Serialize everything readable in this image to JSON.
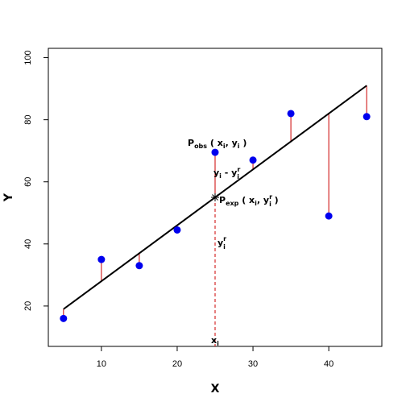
{
  "chart_data": {
    "type": "scatter",
    "xlabel": "X",
    "ylabel": "Y",
    "xlim": [
      3,
      47
    ],
    "ylim": [
      7,
      103
    ],
    "xticks": [
      10,
      20,
      30,
      40
    ],
    "yticks": [
      20,
      40,
      60,
      80,
      100
    ],
    "points": [
      {
        "x": 5,
        "y": 16
      },
      {
        "x": 10,
        "y": 35
      },
      {
        "x": 15,
        "y": 33
      },
      {
        "x": 20,
        "y": 44.5
      },
      {
        "x": 25,
        "y": 69.5
      },
      {
        "x": 30,
        "y": 67
      },
      {
        "x": 35,
        "y": 82
      },
      {
        "x": 40,
        "y": 49
      },
      {
        "x": 45,
        "y": 81
      }
    ],
    "regression_line": {
      "x": [
        5,
        45
      ],
      "y": [
        19,
        91
      ]
    },
    "highlight_x": 25,
    "highlight_y_fit": 55,
    "colors": {
      "points": "#0000ee",
      "residuals": "#cc0000",
      "line": "#000000",
      "marker_line": "#cc0000"
    }
  },
  "annotations": {
    "p_obs": {
      "main": "P",
      "sub": "obs",
      "rest": " ( x",
      "sub_i": "i",
      "mid": ", y",
      "sub_i2": "i",
      "end": " )"
    },
    "residual": {
      "y": "y",
      "sub_i": "i",
      "minus": " - y",
      "sup_r": "r",
      "sub_i2": "i"
    },
    "p_exp": {
      "main": "P",
      "sub": "exp",
      "rest": " ( x",
      "sub_i": "i",
      "mid": ", y",
      "sup_r": "r",
      "sub_i2": "i",
      "end": " )"
    },
    "yr": {
      "y": "y",
      "sup_r": "r",
      "sub_i": "i"
    },
    "xi": {
      "x": "x",
      "sub_i": "i"
    }
  }
}
